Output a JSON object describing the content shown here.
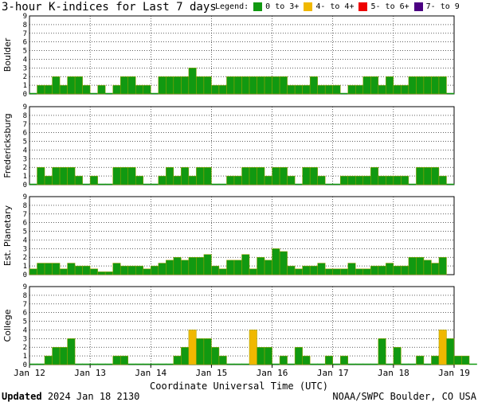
{
  "title": "3-hour K-indices for Last 7 days",
  "legend": {
    "label": "Legend:",
    "items": [
      {
        "text": "0 to 3+",
        "color": "#119911"
      },
      {
        "text": "4- to 4+",
        "color": "#f0b800"
      },
      {
        "text": "5- to 6+",
        "color": "#ee0000"
      },
      {
        "text": "7- to 9",
        "color": "#4b0082"
      }
    ]
  },
  "footer": {
    "updated_label": "Updated",
    "updated_value": "2024 Jan 18 2130",
    "source": "NOAA/SWPC Boulder, CO USA"
  },
  "chart_data": {
    "type": "bar",
    "xlabel": "Coordinate Universal Time (UTC)",
    "x_ticks": [
      "Jan 12",
      "Jan 13",
      "Jan 14",
      "Jan 15",
      "Jan 16",
      "Jan 17",
      "Jan 18",
      "Jan 19"
    ],
    "ylim": [
      0,
      9
    ],
    "y_ticks": [
      "0",
      "1",
      "2",
      "3",
      "4",
      "5",
      "6",
      "7",
      "8",
      "9"
    ],
    "grid": true,
    "bar_interval_hours": 3,
    "panels": [
      {
        "name": "Boulder",
        "values": [
          0,
          1,
          1,
          2,
          1,
          2,
          2,
          1,
          0,
          1,
          0,
          1,
          2,
          2,
          1,
          1,
          0,
          2,
          2,
          2,
          2,
          3,
          2,
          2,
          1,
          1,
          2,
          2,
          2,
          2,
          2,
          2,
          2,
          2,
          1,
          1,
          1,
          2,
          1,
          1,
          1,
          0,
          1,
          1,
          2,
          2,
          1,
          2,
          1,
          1,
          2,
          2,
          2,
          2,
          2,
          0
        ]
      },
      {
        "name": "Fredericksburg",
        "values": [
          0,
          2,
          1,
          2,
          2,
          2,
          1,
          0,
          1,
          0,
          0,
          2,
          2,
          2,
          1,
          0,
          0,
          1,
          2,
          1,
          2,
          1,
          2,
          2,
          0,
          0,
          1,
          1,
          2,
          2,
          2,
          1,
          2,
          2,
          1,
          0,
          2,
          2,
          1,
          0,
          0,
          1,
          1,
          1,
          1,
          2,
          1,
          1,
          1,
          1,
          0,
          2,
          2,
          2,
          1,
          0
        ]
      },
      {
        "name": "Est. Planetary",
        "values": [
          0.67,
          1.33,
          1.33,
          1.33,
          0.67,
          1.33,
          1.0,
          1.0,
          0.67,
          0.33,
          0.33,
          1.33,
          1.0,
          1.0,
          1.0,
          0.67,
          1.0,
          1.33,
          1.67,
          2.0,
          1.67,
          2.0,
          2.0,
          2.33,
          1.0,
          0.67,
          1.67,
          1.67,
          2.33,
          0.67,
          2.0,
          1.67,
          3.0,
          2.67,
          1.0,
          0.67,
          1.0,
          1.0,
          1.33,
          0.67,
          0.67,
          0.67,
          1.33,
          0.67,
          0.67,
          1.0,
          1.0,
          1.33,
          1.0,
          1.0,
          2.0,
          2.0,
          1.67,
          1.33,
          2.0
        ]
      },
      {
        "name": "College",
        "values": [
          0,
          0,
          1,
          2,
          2,
          3,
          0,
          0,
          0,
          0,
          0,
          1,
          1,
          0,
          0,
          0,
          0,
          0,
          0,
          1,
          2,
          4,
          3,
          3,
          2,
          1,
          0,
          0,
          0,
          4,
          2,
          2,
          0,
          1,
          0,
          2,
          1,
          0,
          0,
          1,
          0,
          1,
          0,
          0,
          0,
          0,
          3,
          0,
          2,
          0,
          0,
          1,
          0,
          1,
          4,
          3,
          1,
          1,
          0
        ]
      }
    ]
  }
}
